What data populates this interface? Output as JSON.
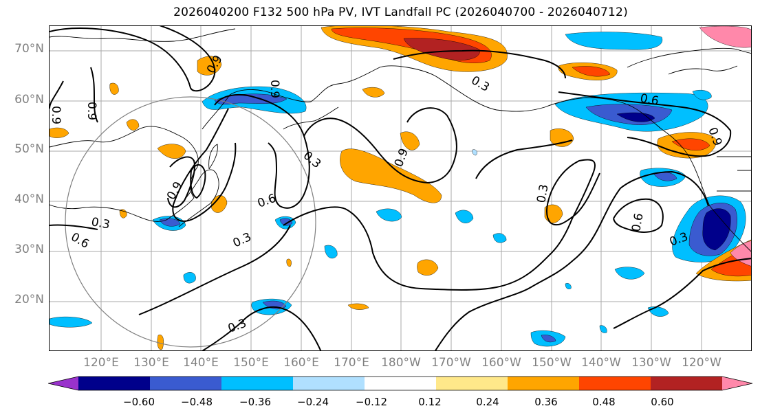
{
  "title": "2026040200 F132 500 hPa PV, IVT Landfall PC (2026040700 - 2026040712)",
  "lat_labels": [
    "70°N",
    "60°N",
    "50°N",
    "40°N",
    "30°N",
    "20°N"
  ],
  "lon_labels": [
    "120°E",
    "130°E",
    "140°E",
    "150°E",
    "160°E",
    "170°E",
    "180°W",
    "170°W",
    "160°W",
    "150°W",
    "140°W",
    "130°W",
    "120°W"
  ],
  "contour_labels": [
    "0.9",
    "0.9",
    "0.9",
    "0.9",
    "0.9",
    "0.9",
    "0.6",
    "0.6",
    "0.6",
    "0.6",
    "0.3",
    "0.3",
    "0.3",
    "0.3",
    "0.3",
    "0.3",
    "0.3",
    "0.9"
  ],
  "colorbar": {
    "ticks": [
      "−0.60",
      "−0.48",
      "−0.36",
      "−0.24",
      "−0.12",
      "0.12",
      "0.24",
      "0.36",
      "0.48",
      "0.60"
    ],
    "colors": [
      "#9932cc",
      "#00008b",
      "#3a5bd0",
      "#00bfff",
      "#b0e0ff",
      "#ffffff",
      "#ffe88a",
      "#ffa500",
      "#ff4500",
      "#b22222",
      "#ff88aa"
    ]
  }
}
